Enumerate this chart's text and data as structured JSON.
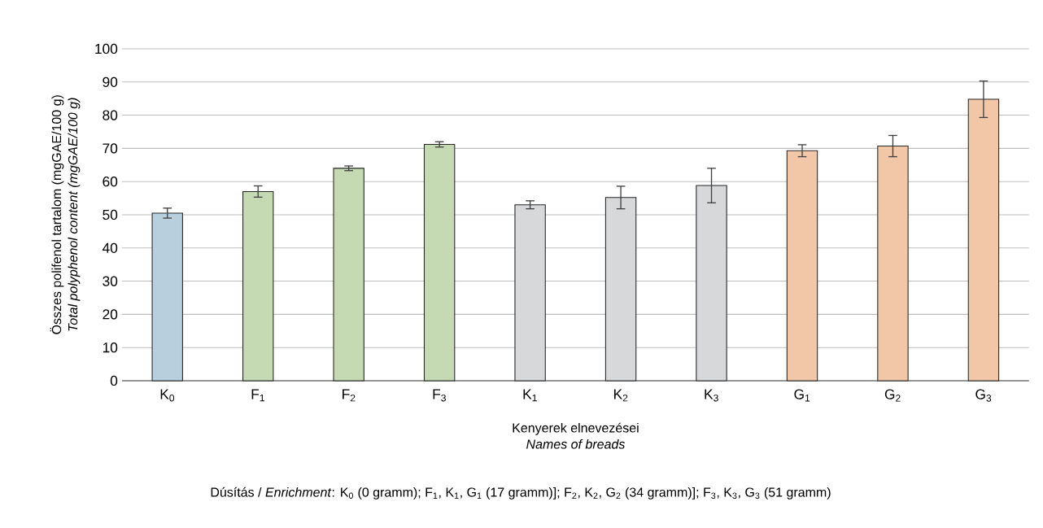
{
  "chart_data": {
    "type": "bar",
    "categories": [
      "K$_{0}$",
      "F$_{1}$",
      "F$_{2}$",
      "F$_{3}$",
      "K$_{1}$",
      "K$_{2}$",
      "K$_{3}$",
      "G$_{1}$",
      "G$_{2}$",
      "G$_{3}$"
    ],
    "values": [
      50.5,
      57,
      64,
      71.2,
      53,
      55.2,
      58.8,
      69.3,
      70.7,
      84.8
    ],
    "errors": [
      1.5,
      1.7,
      0.7,
      0.8,
      1.2,
      3.4,
      5.2,
      1.8,
      3.2,
      5.5
    ],
    "colors": [
      "#b8d0de",
      "#c5dab3",
      "#c5dab3",
      "#c5dab3",
      "#d7d8da",
      "#d7d8da",
      "#d7d8da",
      "#f2c7a8",
      "#f2c7a8",
      "#f2c7a8"
    ],
    "xlabel": "Kenyerek elnevezései",
    "ylabel": "Összes polifenol tartalom (mgGAE/100 g)",
    "annotations": [
      "*Total polyphenol content (mgGAE/100 g)*",
      "*Names of breads*",
      "Dúsítás / *Enrichment*: K$_{0}$ (0 gramm); F$_{1}$, K$_{1}$, G$_{1}$ (17 gramm)]; F$_{2}$, K$_{2}$, G$_{2}$ (34 gramm)]; F$_{3}$, K$_{3}$, G$_{3}$ (51 gramm)"
    ],
    "ylim": [
      0,
      100
    ],
    "yticks": [
      0,
      10,
      20,
      30,
      40,
      50,
      60,
      70,
      80,
      90,
      100
    ],
    "grid": "y"
  }
}
